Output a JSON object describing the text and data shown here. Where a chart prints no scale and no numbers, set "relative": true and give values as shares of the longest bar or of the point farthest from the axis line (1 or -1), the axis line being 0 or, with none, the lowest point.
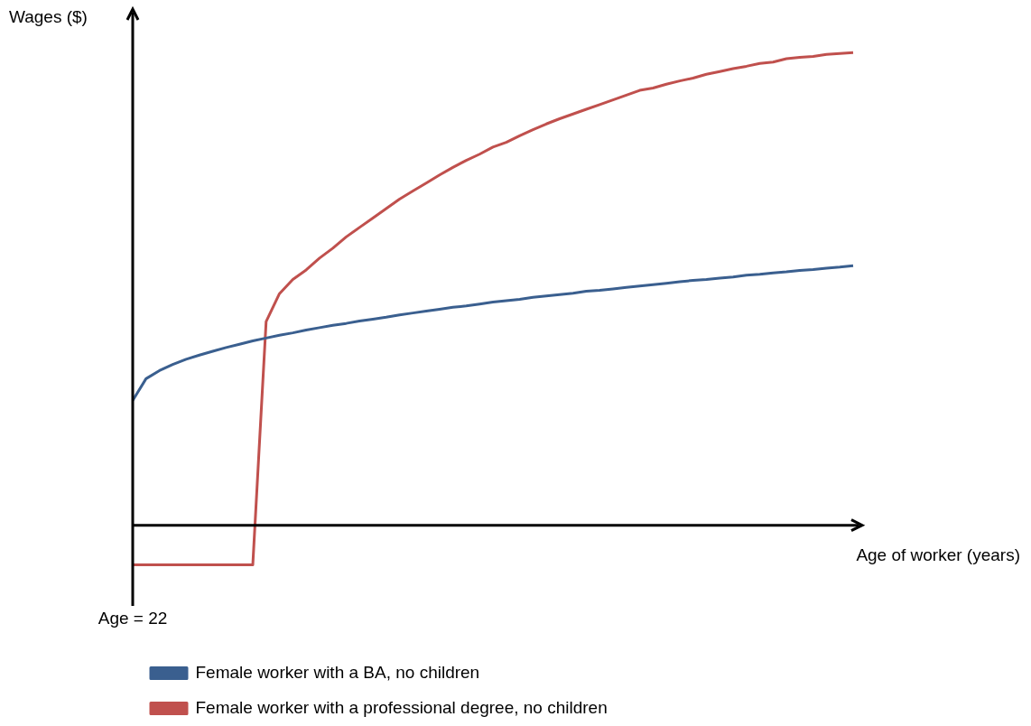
{
  "chart_data": {
    "type": "line",
    "relative": true,
    "xlabel": "Age of worker (years)",
    "ylabel": "Wages ($)",
    "annotations": [
      "Age = 22"
    ],
    "legend": "bottom",
    "marker": "none",
    "categories": [
      null,
      null,
      null,
      null,
      null,
      null,
      null,
      null,
      null,
      null,
      null,
      null,
      null,
      null,
      null,
      null,
      null,
      null,
      null,
      null,
      null,
      null,
      null,
      null,
      null,
      null,
      null,
      null,
      null,
      null,
      null,
      null,
      null,
      null,
      null,
      null,
      null,
      null,
      null,
      null,
      null,
      null,
      null,
      null,
      null,
      null,
      null,
      null,
      null,
      null,
      null,
      null,
      null,
      null,
      null
    ],
    "series": [
      {
        "name": "Female worker with a BA, no children",
        "color": "#3a5f8f",
        "values": [
          0.264,
          0.31,
          0.327,
          0.34,
          0.351,
          0.36,
          0.368,
          0.376,
          0.383,
          0.39,
          0.396,
          0.402,
          0.407,
          0.413,
          0.418,
          0.423,
          0.427,
          0.432,
          0.436,
          0.44,
          0.445,
          0.449,
          0.453,
          0.457,
          0.461,
          0.464,
          0.468,
          0.472,
          0.475,
          0.478,
          0.482,
          0.485,
          0.488,
          0.491,
          0.495,
          0.497,
          0.5,
          0.503,
          0.506,
          0.509,
          0.512,
          0.515,
          0.518,
          0.52,
          0.523,
          0.525,
          0.529,
          0.531,
          0.534,
          0.536,
          0.539,
          0.541,
          0.544,
          0.546,
          0.549
        ]
      },
      {
        "name": "Female worker with a professional degree, no children",
        "color": "#c0504d",
        "values": [
          -0.084,
          -0.084,
          -0.084,
          -0.084,
          -0.084,
          -0.084,
          -0.084,
          -0.084,
          -0.084,
          -0.084,
          0.431,
          0.49,
          0.52,
          0.54,
          0.565,
          0.586,
          0.61,
          0.63,
          0.65,
          0.67,
          0.69,
          0.707,
          0.724,
          0.741,
          0.757,
          0.772,
          0.785,
          0.8,
          0.81,
          0.824,
          0.837,
          0.849,
          0.86,
          0.87,
          0.88,
          0.89,
          0.9,
          0.91,
          0.92,
          0.925,
          0.933,
          0.94,
          0.946,
          0.954,
          0.96,
          0.966,
          0.971,
          0.977,
          0.98,
          0.987,
          0.99,
          0.992,
          0.996,
          0.998,
          1.0
        ]
      }
    ]
  }
}
